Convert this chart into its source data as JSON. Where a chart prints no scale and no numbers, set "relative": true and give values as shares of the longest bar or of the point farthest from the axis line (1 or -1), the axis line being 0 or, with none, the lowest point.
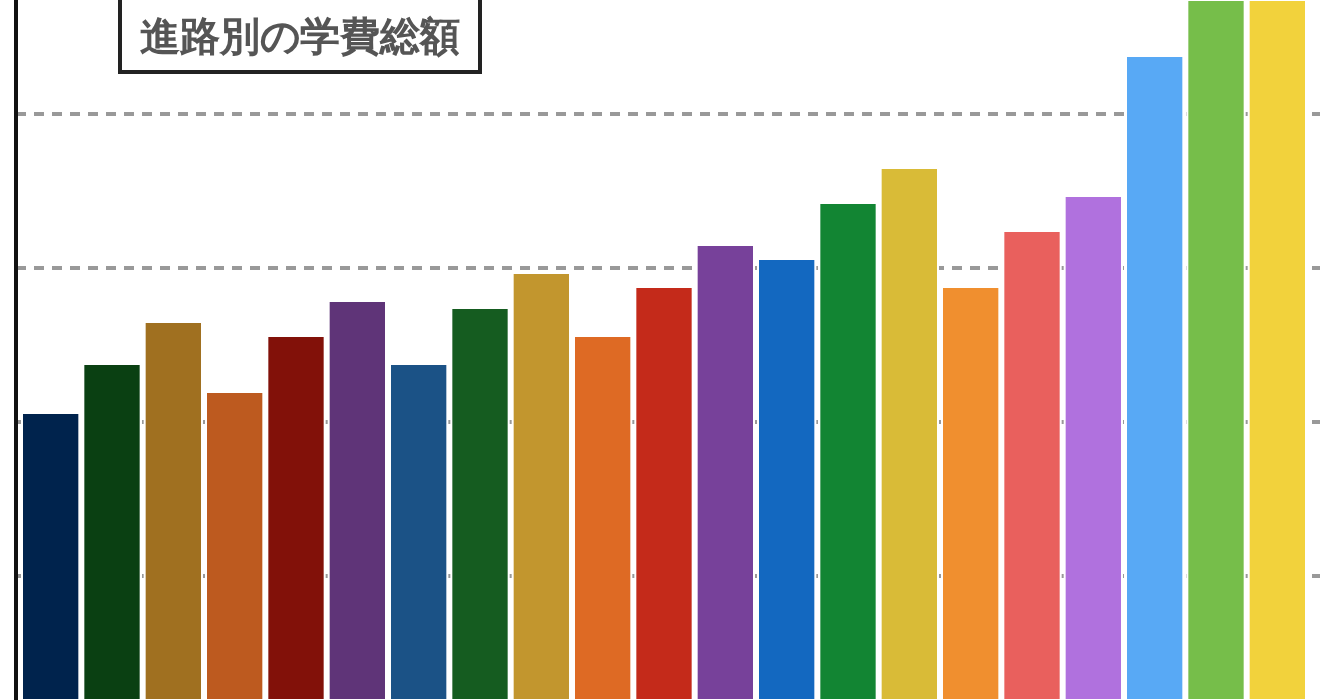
{
  "chart_data": {
    "type": "bar",
    "title": "進路別の学費総額",
    "categories": [
      null,
      null,
      null,
      null,
      null,
      null,
      null,
      null,
      null,
      null,
      null,
      null,
      null,
      null,
      null,
      null,
      null,
      null,
      null,
      null,
      null
    ],
    "values": [
      0.41,
      0.48,
      0.54,
      0.44,
      0.52,
      0.57,
      0.48,
      0.56,
      0.61,
      0.52,
      0.59,
      0.65,
      0.63,
      0.71,
      0.76,
      0.59,
      0.67,
      0.72,
      0.92,
      1,
      1
    ],
    "colors": [
      "#00234d",
      "#0a4012",
      "#a07020",
      "#bd5a1f",
      "#821109",
      "#5f3478",
      "#1b5286",
      "#155c20",
      "#c2962e",
      "#de6a24",
      "#c42a1a",
      "#77419a",
      "#1368c0",
      "#128533",
      "#d9bb37",
      "#f08f2f",
      "#e9605d",
      "#b071de",
      "#58a9f5",
      "#76be4a",
      "#f2d23c"
    ],
    "relative": true,
    "grid": "y"
  }
}
